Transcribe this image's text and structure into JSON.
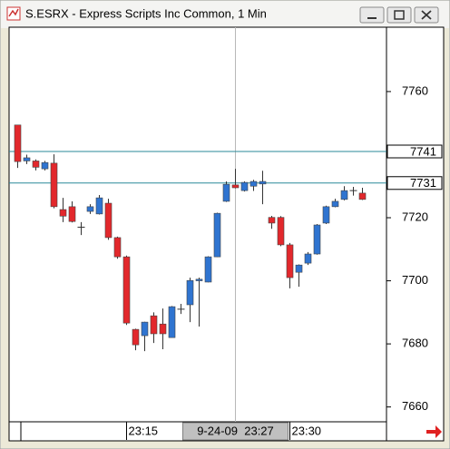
{
  "window_title": "S.ESRX - Express Scripts Inc Common, 1 Min",
  "chart_data": {
    "type": "candlestick",
    "categories": [
      null,
      null,
      null,
      null,
      null,
      null,
      null,
      null,
      null,
      null,
      null,
      null,
      "23:15",
      null,
      null,
      null,
      null,
      null,
      null,
      null,
      null,
      null,
      null,
      null,
      "9-24-09  23:27",
      null,
      null,
      null,
      null,
      null,
      "23:30",
      null,
      null,
      null,
      null,
      null,
      null,
      null,
      null
    ],
    "cursor_category": 24,
    "open": [
      7749.4,
      7738.0,
      7738.0,
      7735.5,
      7737.3,
      7722.6,
      7723.5,
      7717.0,
      7722.0,
      7721.2,
      7724.6,
      7713.7,
      7707.6,
      7684.6,
      7682.6,
      7688.9,
      7686.3,
      7682.0,
      7691.0,
      7692.4,
      7700.0,
      7699.6,
      7707.6,
      7725.2,
      7730.4,
      7728.6,
      7730.0,
      7730.7,
      7720.1,
      7720.1,
      7711.4,
      7702.7,
      7705.6,
      7708.5,
      7718.3,
      7723.5,
      7725.8,
      7728.6,
      7727.8
    ],
    "high": [
      7749.4,
      7740.0,
      7738.5,
      7738.0,
      7740.1,
      7726.3,
      7725.2,
      7718.6,
      7724.3,
      7727.2,
      7726.0,
      7714.0,
      7708.0,
      7684.8,
      7687.0,
      7690.0,
      7691.2,
      7692.0,
      7692.7,
      7701.0,
      7701.0,
      7707.8,
      7721.6,
      7731.5,
      7735.5,
      7731.5,
      7732.0,
      7734.9,
      7720.6,
      7720.5,
      7712.0,
      7705.2,
      7709.1,
      7718.0,
      7723.8,
      7726.0,
      7730.0,
      7729.8,
      7729.5
    ],
    "low": [
      7735.8,
      7737.0,
      7735.0,
      7735.0,
      7723.0,
      7718.6,
      7718.5,
      7714.5,
      7721.2,
      7721.0,
      7713.0,
      7707.0,
      7686.0,
      7678.0,
      7677.7,
      7680.3,
      7678.3,
      7682.0,
      7689.5,
      7686.9,
      7685.5,
      7699.5,
      7707.5,
      7725.0,
      7729.3,
      7728.3,
      7728.5,
      7724.3,
      7716.5,
      7711.0,
      7697.6,
      7698.1,
      7705.0,
      7708.3,
      7718.0,
      7723.3,
      7725.5,
      7727.0,
      7725.6
    ],
    "close": [
      7737.8,
      7739.0,
      7736.0,
      7737.5,
      7723.5,
      7720.5,
      7718.8,
      7717.0,
      7723.5,
      7726.3,
      7713.7,
      7707.6,
      7686.6,
      7679.7,
      7686.9,
      7683.2,
      7683.2,
      7691.8,
      7691.0,
      7700.1,
      7700.5,
      7707.6,
      7721.4,
      7730.6,
      7729.5,
      7731.2,
      7731.5,
      7731.5,
      7718.3,
      7711.4,
      7701.0,
      7705.0,
      7708.5,
      7717.7,
      7723.5,
      7725.2,
      7728.6,
      7728.6,
      7725.8
    ],
    "up_color": "#2f74d0",
    "down_color": "#e2282c",
    "levels": [
      7741,
      7731
    ],
    "level_color": "#2a8a9a",
    "ylim": [
      7655.3,
      7780.4
    ],
    "yticks": [
      7660,
      7680,
      7700,
      7720,
      7760
    ]
  }
}
